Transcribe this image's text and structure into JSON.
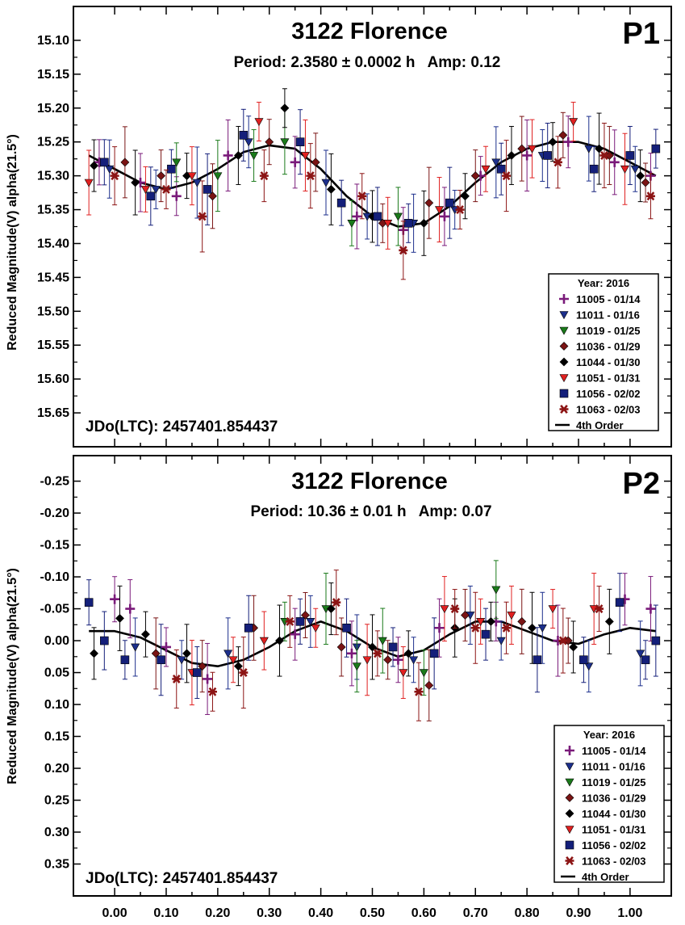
{
  "legend": {
    "title": "Year: 2016",
    "entries": [
      {
        "label": "11005 - 01/14",
        "marker": "plus",
        "color": "#7a1a7a"
      },
      {
        "label": "11011 - 01/16",
        "marker": "triangle-down",
        "color": "#1c2f8c"
      },
      {
        "label": "11019 - 01/25",
        "marker": "triangle-down",
        "color": "#1a7a1a"
      },
      {
        "label": "11036 - 01/29",
        "marker": "diamond",
        "color": "#7a1414"
      },
      {
        "label": "11044 - 01/30",
        "marker": "diamond",
        "color": "#000000"
      },
      {
        "label": "11051 - 01/31",
        "marker": "triangle-down",
        "color": "#e02020"
      },
      {
        "label": "11056 - 02/02",
        "marker": "square",
        "color": "#141f7a"
      },
      {
        "label": "11063 - 02/03",
        "marker": "asterisk",
        "color": "#8c1414"
      },
      {
        "label": "4th Order",
        "marker": "line",
        "color": "#000000"
      }
    ]
  },
  "chart_data": [
    {
      "type": "scatter",
      "panel": "P1",
      "title": "3122 Florence",
      "subtitle": "Period: 2.3580 ± 0.0002 h   Amp: 0.12",
      "annotation": "JDo(LTC): 2457401.854437",
      "ylabel": "Reduced Magnitude(V) alpha(21.5°)",
      "y_inverted": true,
      "ylim": [
        15.7,
        15.05
      ],
      "xlim": [
        -0.08,
        1.08
      ],
      "x_ticks": [],
      "y_ticks": [
        "15.10",
        "15.15",
        "15.20",
        "15.25",
        "15.30",
        "15.35",
        "15.40",
        "15.45",
        "15.50",
        "15.55",
        "15.60",
        "15.65"
      ],
      "fit": {
        "name": "4th Order",
        "x": [
          -0.05,
          0.0,
          0.05,
          0.1,
          0.15,
          0.2,
          0.25,
          0.3,
          0.35,
          0.4,
          0.45,
          0.5,
          0.55,
          0.6,
          0.65,
          0.7,
          0.75,
          0.8,
          0.85,
          0.9,
          0.95,
          1.0,
          1.05
        ],
        "y": [
          15.27,
          15.29,
          15.31,
          15.32,
          15.31,
          15.29,
          15.265,
          15.255,
          15.26,
          15.29,
          15.33,
          15.36,
          15.375,
          15.37,
          15.345,
          15.31,
          15.28,
          15.26,
          15.25,
          15.25,
          15.26,
          15.28,
          15.3
        ]
      },
      "series": [
        {
          "name": "11005 - 01/14",
          "x": [
            -0.03,
            0.05,
            0.12,
            0.22,
            0.35,
            0.47,
            0.56,
            0.64,
            0.71,
            0.8,
            0.88,
            0.97,
            1.04
          ],
          "y": [
            15.28,
            15.31,
            15.33,
            15.27,
            15.28,
            15.36,
            15.38,
            15.36,
            15.3,
            15.27,
            15.25,
            15.28,
            15.3
          ]
        },
        {
          "name": "11011 - 01/16",
          "x": [
            -0.01,
            0.08,
            0.16,
            0.26,
            0.41,
            0.49,
            0.58,
            0.66,
            0.74,
            0.83,
            0.92,
            1.01
          ],
          "y": [
            15.29,
            15.32,
            15.31,
            15.25,
            15.31,
            15.36,
            15.37,
            15.35,
            15.28,
            15.27,
            15.26,
            15.29
          ]
        },
        {
          "name": "11019 - 01/25",
          "x": [
            0.12,
            0.2,
            0.27,
            0.33,
            0.46,
            0.55
          ],
          "y": [
            15.28,
            15.3,
            15.27,
            15.25,
            15.37,
            15.36
          ]
        },
        {
          "name": "11036 - 01/29",
          "x": [
            0.02,
            0.09,
            0.19,
            0.3,
            0.39,
            0.52,
            0.61,
            0.7,
            0.79,
            0.87,
            0.96,
            1.03
          ],
          "y": [
            15.28,
            15.3,
            15.33,
            15.25,
            15.28,
            15.37,
            15.34,
            15.3,
            15.26,
            15.24,
            15.27,
            15.31
          ]
        },
        {
          "name": "11044 - 01/30",
          "x": [
            -0.04,
            0.04,
            0.14,
            0.24,
            0.33,
            0.42,
            0.5,
            0.6,
            0.68,
            0.77,
            0.85,
            0.94,
            1.02
          ],
          "y": [
            15.285,
            15.31,
            15.3,
            15.27,
            15.2,
            15.32,
            15.36,
            15.37,
            15.33,
            15.27,
            15.25,
            15.26,
            15.3
          ]
        },
        {
          "name": "11051 - 01/31",
          "x": [
            -0.05,
            0.06,
            0.15,
            0.28,
            0.37,
            0.53,
            0.63,
            0.72,
            0.81,
            0.89,
            0.99
          ],
          "y": [
            15.31,
            15.32,
            15.3,
            15.22,
            15.27,
            15.37,
            15.35,
            15.29,
            15.26,
            15.22,
            15.29
          ]
        },
        {
          "name": "11056 - 02/02",
          "x": [
            -0.02,
            0.07,
            0.11,
            0.18,
            0.25,
            0.36,
            0.44,
            0.51,
            0.57,
            0.65,
            0.75,
            0.84,
            0.93,
            1.0,
            1.05
          ],
          "y": [
            15.28,
            15.33,
            15.29,
            15.32,
            15.24,
            15.25,
            15.34,
            15.36,
            15.37,
            15.34,
            15.29,
            15.27,
            15.29,
            15.27,
            15.26
          ]
        },
        {
          "name": "11063 - 02/03",
          "x": [
            0.0,
            0.1,
            0.17,
            0.29,
            0.38,
            0.48,
            0.56,
            0.67,
            0.76,
            0.86,
            0.95,
            1.04
          ],
          "y": [
            15.3,
            15.32,
            15.36,
            15.3,
            15.3,
            15.33,
            15.41,
            15.35,
            15.3,
            15.28,
            15.27,
            15.33
          ]
        }
      ]
    },
    {
      "type": "scatter",
      "panel": "P2",
      "title": "3122 Florence",
      "subtitle": "Period: 10.36 ± 0.01 h   Amp: 0.07",
      "annotation": "JDo(LTC): 2457401.854437",
      "ylabel": "Reduced Magnitude(V) alpha(21.5°)",
      "y_inverted": true,
      "ylim": [
        0.4,
        -0.29
      ],
      "xlim": [
        -0.08,
        1.08
      ],
      "x_ticks": [
        "0.00",
        "0.10",
        "0.20",
        "0.30",
        "0.40",
        "0.50",
        "0.60",
        "0.70",
        "0.80",
        "0.90",
        "1.00"
      ],
      "y_ticks": [
        "-0.25",
        "-0.20",
        "-0.15",
        "-0.10",
        "-0.05",
        "0.00",
        "0.05",
        "0.10",
        "0.15",
        "0.20",
        "0.25",
        "0.30",
        "0.35"
      ],
      "fit": {
        "name": "4th Order",
        "x": [
          -0.05,
          0.0,
          0.05,
          0.1,
          0.15,
          0.2,
          0.25,
          0.3,
          0.35,
          0.4,
          0.45,
          0.5,
          0.55,
          0.6,
          0.65,
          0.7,
          0.75,
          0.8,
          0.85,
          0.9,
          0.95,
          1.0,
          1.05
        ],
        "y": [
          -0.015,
          -0.015,
          -0.005,
          0.015,
          0.035,
          0.04,
          0.03,
          0.01,
          -0.015,
          -0.03,
          -0.015,
          0.01,
          0.025,
          0.015,
          -0.01,
          -0.03,
          -0.03,
          -0.015,
          0.0,
          0.005,
          -0.01,
          -0.02,
          -0.015
        ]
      },
      "series": [
        {
          "name": "11005 - 01/14",
          "x": [
            0.0,
            0.03,
            0.1,
            0.18,
            0.35,
            0.46,
            0.55,
            0.63,
            0.74,
            0.86,
            0.99,
            1.04
          ],
          "y": [
            -0.065,
            -0.05,
            0.01,
            0.06,
            -0.01,
            0.02,
            0.03,
            -0.02,
            -0.03,
            0.0,
            -0.065,
            -0.05
          ]
        },
        {
          "name": "11011 - 01/16",
          "x": [
            0.04,
            0.13,
            0.22,
            0.38,
            0.47,
            0.58,
            0.69,
            0.75,
            0.83,
            0.92,
            1.02
          ],
          "y": [
            0.01,
            0.03,
            0.02,
            -0.03,
            0.01,
            0.03,
            -0.04,
            0.0,
            -0.02,
            0.04,
            0.02
          ]
        },
        {
          "name": "11019 - 01/25",
          "x": [
            0.33,
            0.41,
            0.47,
            0.52,
            0.6,
            0.74
          ],
          "y": [
            -0.03,
            -0.05,
            0.04,
            0.0,
            0.05,
            -0.08
          ]
        },
        {
          "name": "11036 - 01/29",
          "x": [
            0.08,
            0.17,
            0.27,
            0.37,
            0.44,
            0.53,
            0.61,
            0.68,
            0.79,
            0.88
          ],
          "y": [
            0.02,
            0.04,
            -0.02,
            -0.04,
            0.01,
            0.03,
            0.07,
            -0.04,
            -0.03,
            0.0
          ]
        },
        {
          "name": "11044 - 01/30",
          "x": [
            -0.04,
            0.01,
            0.06,
            0.14,
            0.24,
            0.32,
            0.42,
            0.5,
            0.57,
            0.66,
            0.73,
            0.81,
            0.89,
            0.96
          ],
          "y": [
            0.02,
            -0.035,
            -0.01,
            0.02,
            0.04,
            0.0,
            -0.05,
            0.01,
            0.02,
            -0.02,
            -0.03,
            -0.02,
            0.01,
            -0.03
          ]
        },
        {
          "name": "11051 - 01/31",
          "x": [
            0.15,
            0.23,
            0.29,
            0.39,
            0.49,
            0.56,
            0.64,
            0.71,
            0.77,
            0.85,
            0.93
          ],
          "y": [
            0.05,
            0.03,
            0.0,
            -0.02,
            0.03,
            0.05,
            -0.05,
            -0.03,
            -0.04,
            -0.05,
            -0.05
          ]
        },
        {
          "name": "11056 - 02/02",
          "x": [
            -0.05,
            -0.02,
            0.02,
            0.09,
            0.16,
            0.26,
            0.36,
            0.45,
            0.54,
            0.62,
            0.72,
            0.82,
            0.91,
            0.98,
            1.03,
            1.05
          ],
          "y": [
            -0.06,
            0.0,
            0.03,
            0.03,
            0.05,
            -0.02,
            -0.03,
            -0.02,
            0.01,
            0.02,
            -0.01,
            0.03,
            0.03,
            -0.06,
            0.03,
            0.0
          ]
        },
        {
          "name": "11063 - 02/03",
          "x": [
            0.12,
            0.19,
            0.25,
            0.34,
            0.43,
            0.51,
            0.59,
            0.66,
            0.7,
            0.76,
            0.87,
            0.94
          ],
          "y": [
            0.06,
            0.08,
            0.05,
            -0.03,
            -0.06,
            0.02,
            0.08,
            -0.05,
            -0.02,
            -0.02,
            0.0,
            -0.05
          ]
        }
      ]
    }
  ]
}
